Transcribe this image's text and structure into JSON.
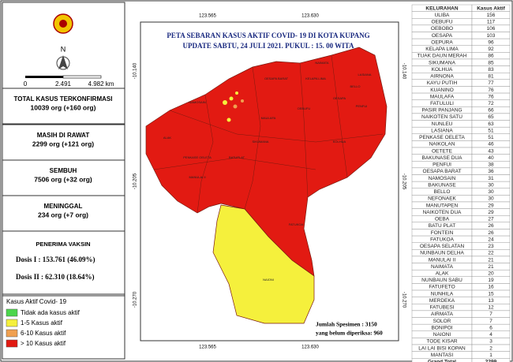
{
  "title": "PETA SEBARAN KASUS AKTIF COVID- 19 DI KOTA KUPANG",
  "subtitle": "UPDATE SABTU, 24 JULI 2021.   PUKUL : 15. 00 WITA",
  "north": "N",
  "scale": [
    "0",
    "2.491",
    "4.982 km"
  ],
  "coords": {
    "top": [
      "123.565",
      "123.630"
    ],
    "left": [
      "-10.140",
      "-10.205",
      "-10.270"
    ]
  },
  "stats": [
    {
      "label": "TOTAL KASUS TERKONFIRMASI",
      "value": "10039 org (+160 org)"
    },
    {
      "label": "MASIH DI RAWAT",
      "value": "2299 org (+121 org)"
    },
    {
      "label": "SEMBUH",
      "value": "7506 org (+32 org)"
    },
    {
      "label": "MENINGGAL",
      "value": "234 org (+7 org)"
    }
  ],
  "vaksin": {
    "label": "PENERIMA VAKSIN",
    "lines": [
      "Dosis I : 153.761 (46.09%)",
      "Dosis II : 62.310 (18.64%)"
    ]
  },
  "legend": {
    "title": "Kasus Aktif Covid- 19",
    "items": [
      {
        "label": "Tidak ada kasus aktif",
        "color": "#4cd64c"
      },
      {
        "label": "1-5 Kasus aktif",
        "color": "#f5f03c"
      },
      {
        "label": "6-10 Kasus aktif",
        "color": "#f0a050"
      },
      {
        "label": "> 10 Kasus aktif",
        "color": "#e21a12"
      }
    ]
  },
  "specimen": [
    "Jumlah Spesimen        : 3150",
    "yang belum diperiksa: 960"
  ],
  "map_labels": [
    "LASIANA",
    "OESAPA",
    "PENFUI",
    "OEBUFU",
    "KOLHUA",
    "SIKUMANA",
    "FATUKOA",
    "NAIONI",
    "ALAK",
    "NAMOSAIN",
    "BELLO",
    "MAULAFA",
    "BATUPLAT",
    "PENKASE OELETA",
    "MANULAI II",
    "KELAPA LIMA",
    "OESAPA BARAT",
    "NAIMATA"
  ],
  "table": {
    "header": [
      "KELURAHAN",
      "Kasus Aktif"
    ],
    "rows": [
      [
        "ULIBA",
        156
      ],
      [
        "OEBUFU",
        117
      ],
      [
        "OEBOBO",
        106
      ],
      [
        "OESAPA",
        103
      ],
      [
        "OEPURA",
        96
      ],
      [
        "KELAPA LIMA",
        92
      ],
      [
        "TUAK DAUN MERAH",
        86
      ],
      [
        "SIKUMANA",
        85
      ],
      [
        "KOLHUA",
        83
      ],
      [
        "AIRNONA",
        81
      ],
      [
        "KAYU PUTIH",
        77
      ],
      [
        "KUANINO",
        76
      ],
      [
        "MAULAFA",
        76
      ],
      [
        "FATULULI",
        72
      ],
      [
        "PASIR PANJANG",
        66
      ],
      [
        "NAIKOTEN SATU",
        65
      ],
      [
        "NUNLEU",
        63
      ],
      [
        "LASIANA",
        51
      ],
      [
        "PENKASE OELETA",
        51
      ],
      [
        "NAIKOLAN",
        46
      ],
      [
        "OETETE",
        43
      ],
      [
        "BAKUNASE DUA",
        40
      ],
      [
        "PENFUI",
        38
      ],
      [
        "OESAPA BARAT",
        36
      ],
      [
        "NAMOSAIN",
        31
      ],
      [
        "BAKUNASE",
        30
      ],
      [
        "BELLO",
        30
      ],
      [
        "NEFONAEK",
        30
      ],
      [
        "MANUTAPEN",
        29
      ],
      [
        "NAIKOTEN DUA",
        29
      ],
      [
        "OEBA",
        27
      ],
      [
        "BATU PLAT",
        26
      ],
      [
        "FONTEIN",
        26
      ],
      [
        "FATUKOA",
        24
      ],
      [
        "OESAPA SELATAN",
        23
      ],
      [
        "NUNBAUN DELHA",
        22
      ],
      [
        "MANULAI II",
        21
      ],
      [
        "NAIMATA",
        21
      ],
      [
        "ALAK",
        20
      ],
      [
        "NUNBAUN SABU",
        19
      ],
      [
        "FATUFETO",
        16
      ],
      [
        "NUNHILA",
        15
      ],
      [
        "MERDEKA",
        13
      ],
      [
        "FATUBESI",
        12
      ],
      [
        "AIRMATA",
        7
      ],
      [
        "SOLOR",
        7
      ],
      [
        "BONIPOI",
        6
      ],
      [
        "NAIONI",
        4
      ],
      [
        "TODE KISAR",
        3
      ],
      [
        "LAI LAI BISI KOPAN",
        2
      ],
      [
        "MANTASI",
        1
      ]
    ],
    "total": [
      "Grand Total",
      2299
    ]
  }
}
